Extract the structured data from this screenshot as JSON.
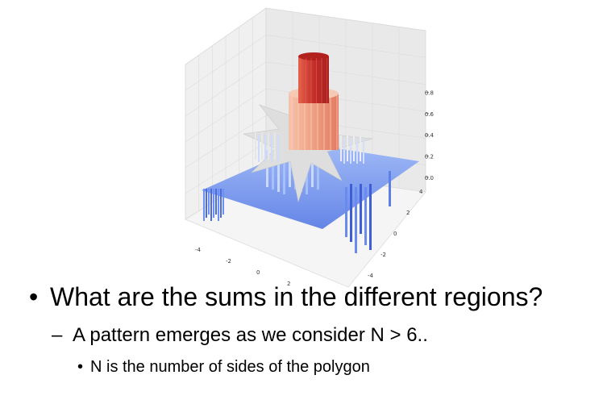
{
  "chart_data": {
    "type": "surface3d",
    "title": "",
    "xlabel": "",
    "ylabel": "",
    "zlabel": "",
    "x_ticks": [
      "-4",
      "-2",
      "0",
      "2",
      "4"
    ],
    "y_ticks": [
      "-4",
      "-2",
      "0",
      "2",
      "4"
    ],
    "z_ticks": [
      "0.0",
      "0.2",
      "0.4",
      "0.6",
      "0.8"
    ],
    "xlim": [
      -5,
      5
    ],
    "ylim": [
      -5,
      5
    ],
    "zlim": [
      -0.2,
      1.0
    ],
    "colormap": "coolwarm",
    "grid": true,
    "levels": [
      {
        "region": "outer plane",
        "z": 0.0,
        "color": "#7aa0f8"
      },
      {
        "region": "star points",
        "z": 0.33,
        "color": "#dedede"
      },
      {
        "region": "middle ring",
        "z": 0.67,
        "color": "#f3b49a"
      },
      {
        "region": "central core",
        "z": 1.0,
        "color": "#c42e2b"
      }
    ],
    "colors": {
      "low": "#3b4cc0",
      "mid": "#dddddd",
      "high": "#b40426"
    }
  },
  "bullets": [
    {
      "marker": "•",
      "text": "What are the sums in the different regions?"
    },
    {
      "marker": "–",
      "text": "A pattern emerges as we consider N > 6.."
    },
    {
      "marker": "•",
      "text": "N is the number of sides of the polygon"
    }
  ]
}
